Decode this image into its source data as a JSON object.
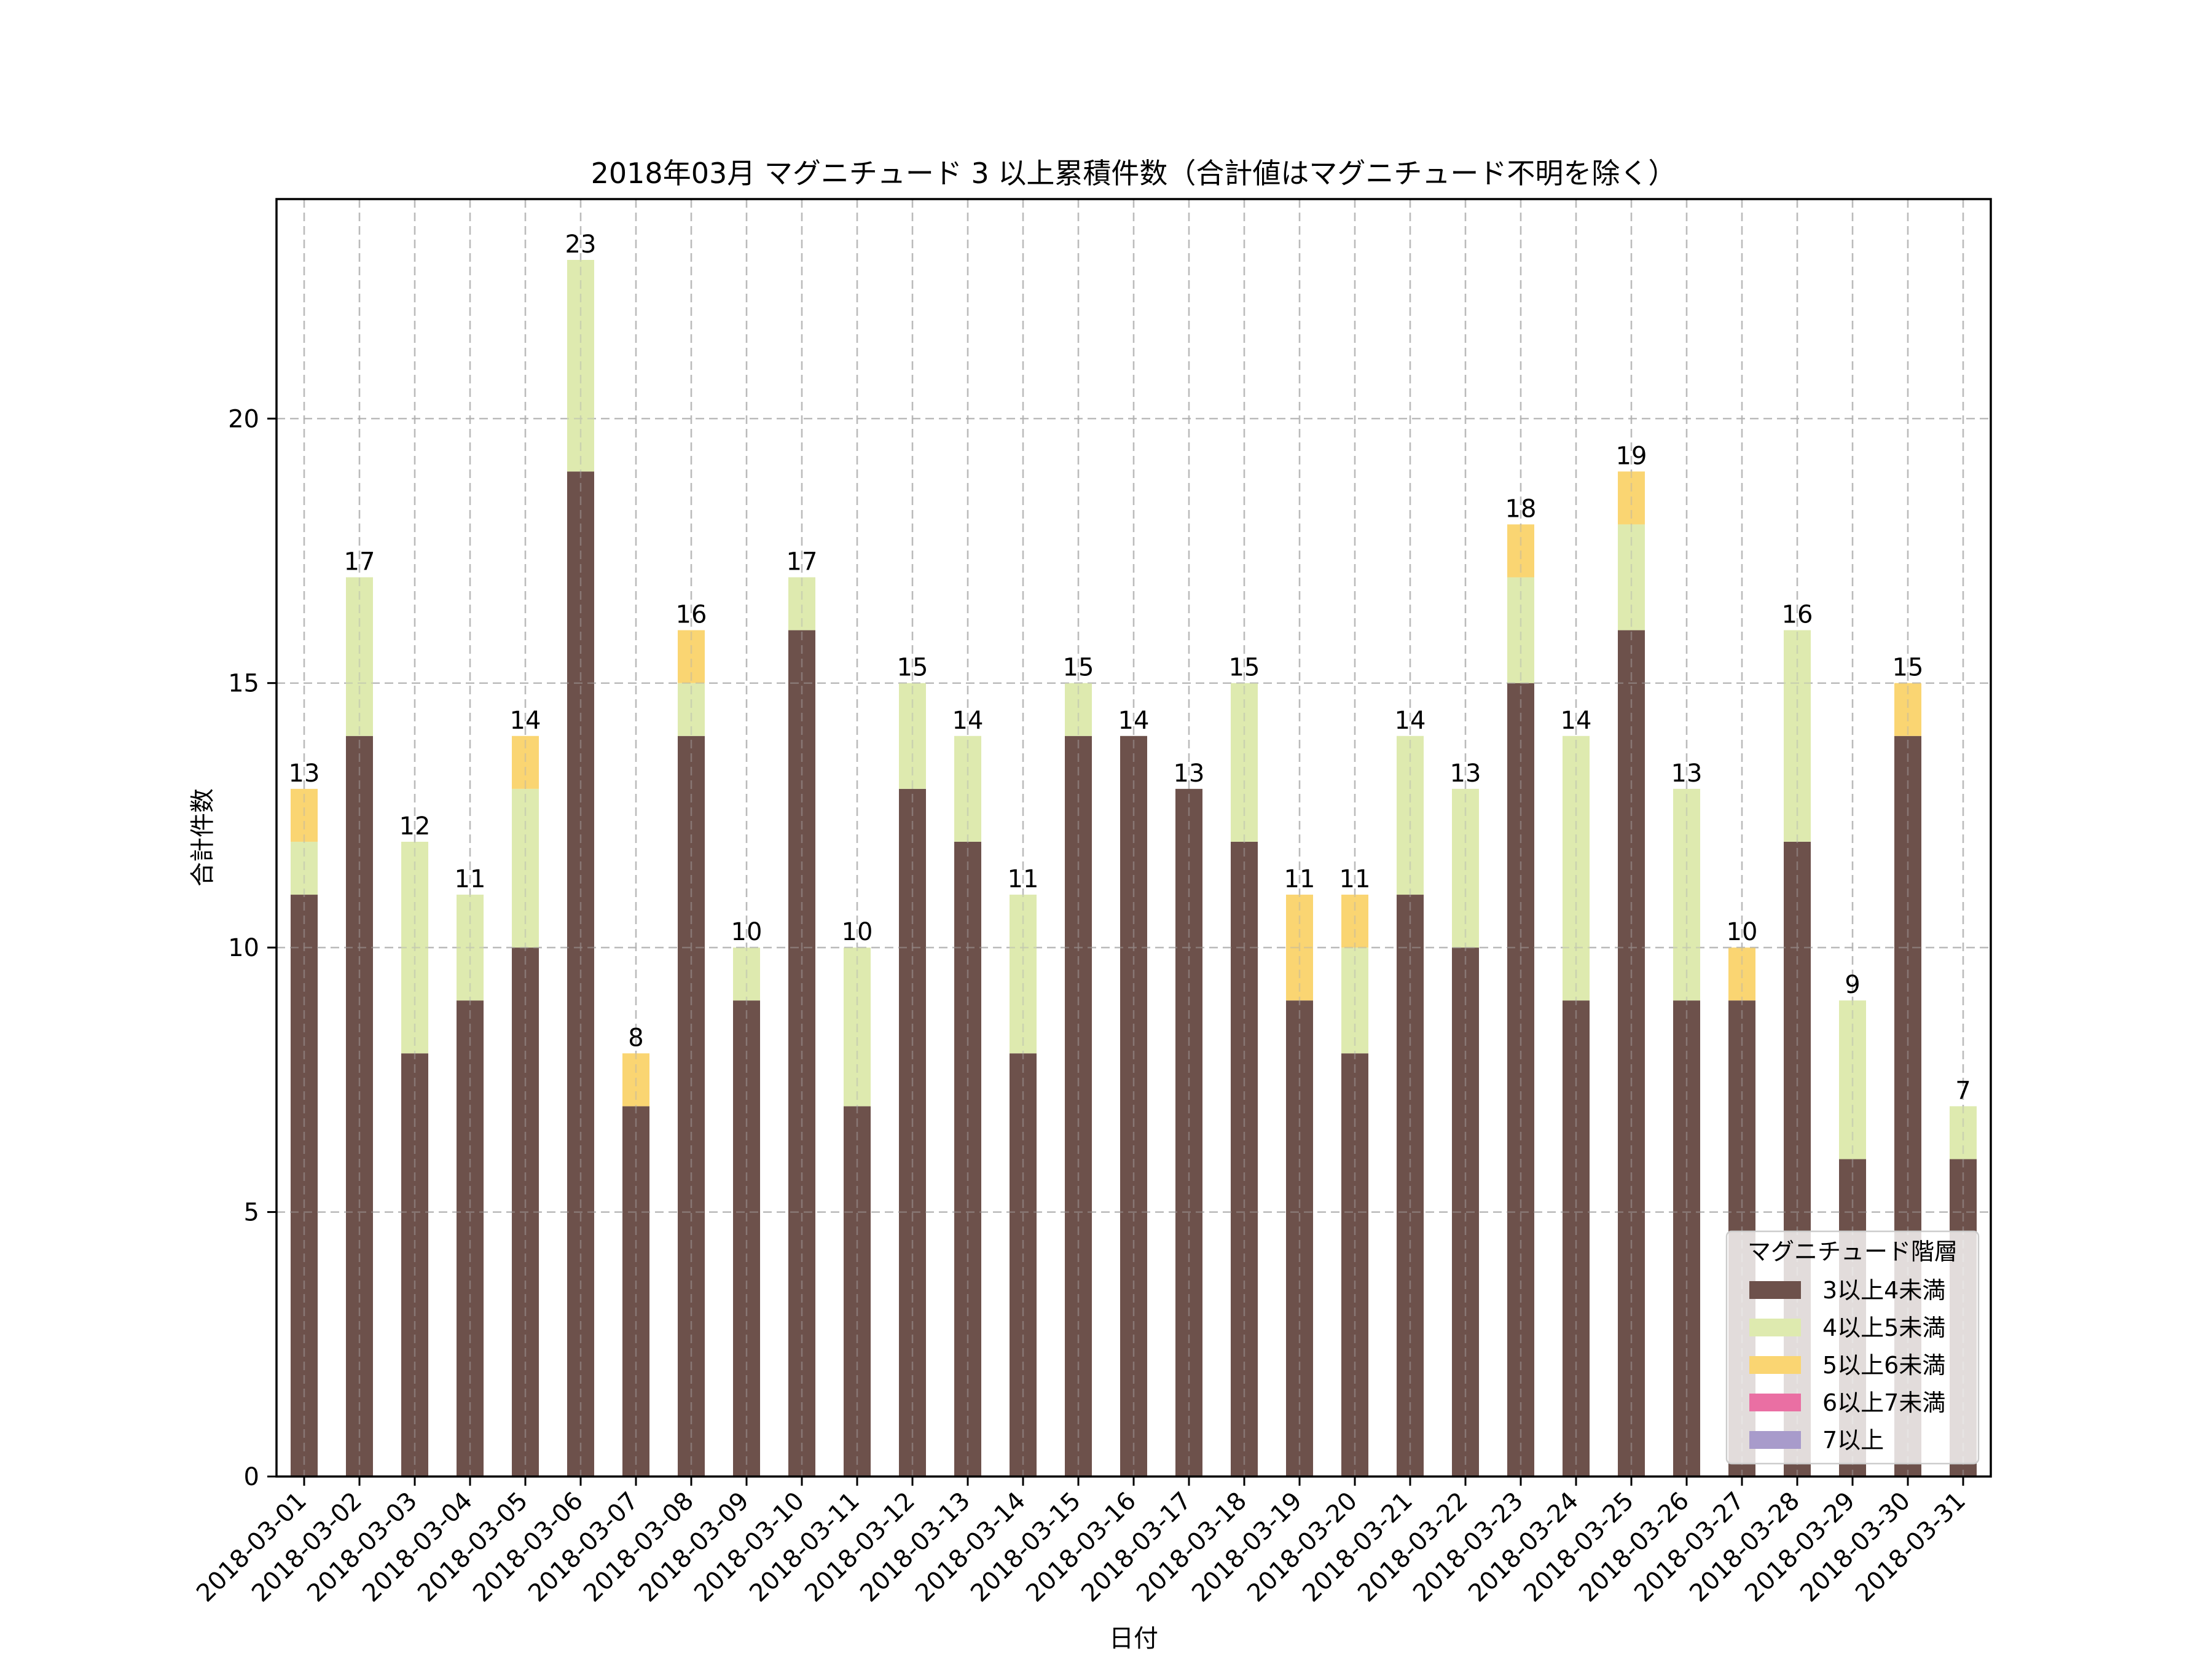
{
  "chart_data": {
    "type": "bar",
    "stacked": true,
    "title": "2018年03月 マグニチュード 3 以上累積件数（合計値はマグニチュード不明を除く）",
    "xlabel": "日付",
    "ylabel": "合計件数",
    "ylim": [
      0,
      24.15
    ],
    "yticks": [
      0,
      5,
      10,
      15,
      20
    ],
    "grid": true,
    "legend": {
      "title": "マグニチュード階層",
      "placement": "lower-right"
    },
    "categories": [
      "2018-03-01",
      "2018-03-02",
      "2018-03-03",
      "2018-03-04",
      "2018-03-05",
      "2018-03-06",
      "2018-03-07",
      "2018-03-08",
      "2018-03-09",
      "2018-03-10",
      "2018-03-11",
      "2018-03-12",
      "2018-03-13",
      "2018-03-14",
      "2018-03-15",
      "2018-03-16",
      "2018-03-17",
      "2018-03-18",
      "2018-03-19",
      "2018-03-20",
      "2018-03-21",
      "2018-03-22",
      "2018-03-23",
      "2018-03-24",
      "2018-03-25",
      "2018-03-26",
      "2018-03-27",
      "2018-03-28",
      "2018-03-29",
      "2018-03-30",
      "2018-03-31"
    ],
    "series": [
      {
        "name": "3以上4未満",
        "color": "#6d514b",
        "values": [
          11,
          14,
          8,
          9,
          10,
          19,
          7,
          14,
          9,
          16,
          7,
          13,
          12,
          8,
          14,
          14,
          13,
          12,
          9,
          8,
          11,
          10,
          15,
          9,
          16,
          9,
          9,
          12,
          6,
          14,
          6
        ]
      },
      {
        "name": "4以上5未満",
        "color": "#deeaaf",
        "values": [
          1,
          3,
          4,
          2,
          3,
          4,
          0,
          1,
          1,
          1,
          3,
          2,
          2,
          3,
          1,
          0,
          0,
          3,
          0,
          2,
          3,
          3,
          2,
          5,
          2,
          4,
          0,
          4,
          3,
          0,
          1
        ]
      },
      {
        "name": "5以上6未満",
        "color": "#fad572",
        "values": [
          1,
          0,
          0,
          0,
          1,
          0,
          1,
          1,
          0,
          0,
          0,
          0,
          0,
          0,
          0,
          0,
          0,
          0,
          2,
          1,
          0,
          0,
          1,
          0,
          1,
          0,
          1,
          0,
          0,
          1,
          0
        ]
      },
      {
        "name": "6以上7未満",
        "color": "#ea6fa3",
        "values": [
          0,
          0,
          0,
          0,
          0,
          0,
          0,
          0,
          0,
          0,
          0,
          0,
          0,
          0,
          0,
          0,
          0,
          0,
          0,
          0,
          0,
          0,
          0,
          0,
          0,
          0,
          0,
          0,
          0,
          0,
          0
        ]
      },
      {
        "name": "7以上",
        "color": "#a89bcb",
        "values": [
          0,
          0,
          0,
          0,
          0,
          0,
          0,
          0,
          0,
          0,
          0,
          0,
          0,
          0,
          0,
          0,
          0,
          0,
          0,
          0,
          0,
          0,
          0,
          0,
          0,
          0,
          0,
          0,
          0,
          0,
          0
        ]
      }
    ],
    "totals": [
      13,
      17,
      12,
      11,
      14,
      23,
      8,
      16,
      10,
      17,
      10,
      15,
      14,
      11,
      15,
      14,
      13,
      15,
      11,
      11,
      14,
      13,
      18,
      14,
      19,
      13,
      10,
      16,
      9,
      15,
      7
    ]
  }
}
